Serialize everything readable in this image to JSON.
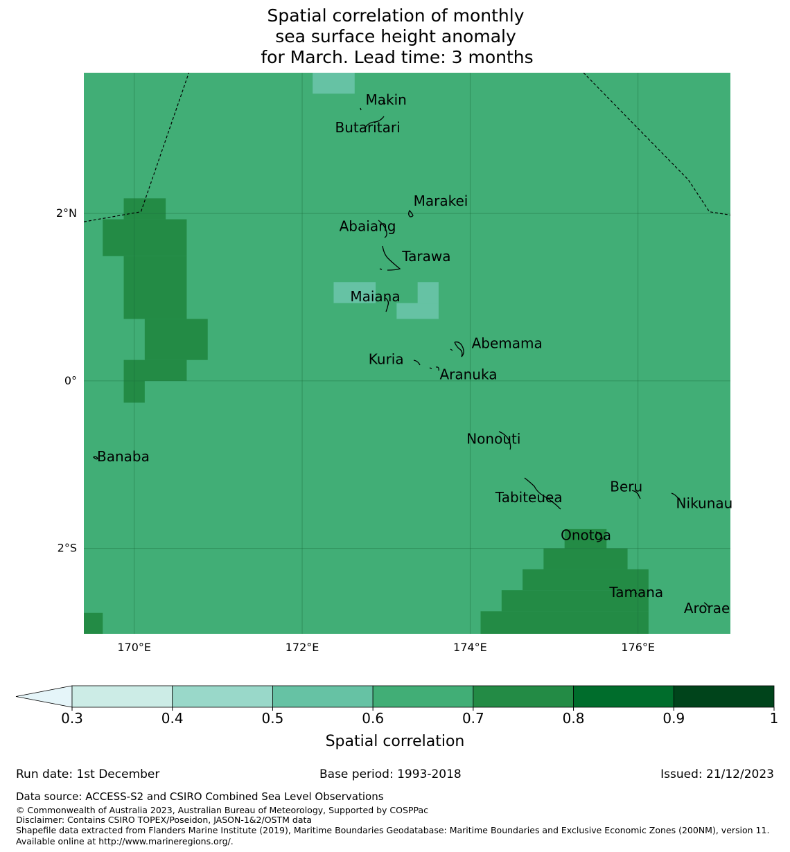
{
  "title": {
    "lines": [
      "Spatial correlation of monthly",
      "sea surface height anomaly",
      "for March. Lead time: 3 months"
    ]
  },
  "map": {
    "lon_range": [
      169.4,
      177.1
    ],
    "lat_range": [
      -3.02,
      3.68
    ],
    "background_value_range": [
      0.6,
      0.7
    ],
    "grid_cell_deg": 0.25,
    "lon_ticks": [
      {
        "value": 170,
        "label": "170°E"
      },
      {
        "value": 172,
        "label": "172°E"
      },
      {
        "value": 174,
        "label": "174°E"
      },
      {
        "value": 176,
        "label": "176°E"
      }
    ],
    "lat_ticks": [
      {
        "value": 2,
        "label": "2°N"
      },
      {
        "value": 0,
        "label": "0°"
      },
      {
        "value": -2,
        "label": "2°S"
      }
    ],
    "cells": [
      {
        "lon": [
          172.125,
          172.625
        ],
        "lat": [
          3.43,
          3.68
        ],
        "range": "0.5-0.6"
      },
      {
        "lon": [
          172.375,
          172.875
        ],
        "lat": [
          0.93,
          1.18
        ],
        "range": "0.5-0.6"
      },
      {
        "lon": [
          173.375,
          173.625
        ],
        "lat": [
          0.93,
          1.18
        ],
        "range": "0.5-0.6"
      },
      {
        "lon": [
          173.125,
          173.625
        ],
        "lat": [
          0.74,
          0.93
        ],
        "range": "0.5-0.6"
      },
      {
        "lon": [
          169.875,
          170.375
        ],
        "lat": [
          1.93,
          2.18
        ],
        "range": "0.7-0.8"
      },
      {
        "lon": [
          169.625,
          170.625
        ],
        "lat": [
          1.49,
          1.93
        ],
        "range": "0.7-0.8"
      },
      {
        "lon": [
          169.875,
          170.625
        ],
        "lat": [
          0.74,
          1.49
        ],
        "range": "0.7-0.8"
      },
      {
        "lon": [
          170.125,
          170.875
        ],
        "lat": [
          0.25,
          0.74
        ],
        "range": "0.7-0.8"
      },
      {
        "lon": [
          169.875,
          170.625
        ],
        "lat": [
          0.0,
          0.25
        ],
        "range": "0.7-0.8"
      },
      {
        "lon": [
          169.875,
          170.125
        ],
        "lat": [
          -0.26,
          0.0
        ],
        "range": "0.7-0.8"
      },
      {
        "lon": [
          169.4,
          169.625
        ],
        "lat": [
          -3.02,
          -2.77
        ],
        "range": "0.7-0.8"
      },
      {
        "lon": [
          175.125,
          175.625
        ],
        "lat": [
          -2.0,
          -1.77
        ],
        "range": "0.7-0.8"
      },
      {
        "lon": [
          174.875,
          175.875
        ],
        "lat": [
          -2.25,
          -2.0
        ],
        "range": "0.7-0.8"
      },
      {
        "lon": [
          174.625,
          176.125
        ],
        "lat": [
          -2.5,
          -2.25
        ],
        "range": "0.7-0.8"
      },
      {
        "lon": [
          174.375,
          176.125
        ],
        "lat": [
          -2.75,
          -2.5
        ],
        "range": "0.7-0.8"
      },
      {
        "lon": [
          174.125,
          176.125
        ],
        "lat": [
          -3.02,
          -2.75
        ],
        "range": "0.7-0.8"
      }
    ],
    "boundaries": [
      [
        [
          169.4,
          1.9
        ],
        [
          170.08,
          2.02
        ],
        [
          170.65,
          3.68
        ]
      ],
      [
        [
          175.35,
          3.68
        ],
        [
          176.6,
          2.4
        ],
        [
          176.85,
          2.02
        ],
        [
          177.1,
          1.98
        ]
      ]
    ],
    "islands": [
      {
        "name": "Makin",
        "lon": 172.9,
        "lat": 3.28,
        "label_lon": 173.0,
        "label_lat": 3.3
      },
      {
        "name": "Butaritari",
        "lon": 172.8,
        "lat": 3.05,
        "label_lon": 172.78,
        "label_lat": 2.97
      },
      {
        "name": "Marakei",
        "lon": 173.28,
        "lat": 2.0,
        "label_lon": 173.65,
        "label_lat": 2.09
      },
      {
        "name": "Abaiang",
        "lon": 173.0,
        "lat": 1.82,
        "label_lon": 172.78,
        "label_lat": 1.79
      },
      {
        "name": "Tarawa",
        "lon": 173.0,
        "lat": 1.45,
        "label_lon": 173.48,
        "label_lat": 1.43
      },
      {
        "name": "Maiana",
        "lon": 173.0,
        "lat": 0.92,
        "label_lon": 172.87,
        "label_lat": 0.95
      },
      {
        "name": "Abemama",
        "lon": 173.85,
        "lat": 0.4,
        "label_lon": 174.44,
        "label_lat": 0.39
      },
      {
        "name": "Kuria",
        "lon": 173.4,
        "lat": 0.23,
        "label_lon": 173.0,
        "label_lat": 0.2
      },
      {
        "name": "Aranuka",
        "lon": 173.6,
        "lat": 0.18,
        "label_lon": 173.98,
        "label_lat": 0.02
      },
      {
        "name": "Nonouti",
        "lon": 174.4,
        "lat": -0.65,
        "label_lon": 174.28,
        "label_lat": -0.75
      },
      {
        "name": "Banaba",
        "lon": 169.53,
        "lat": -0.87,
        "label_lon": 169.87,
        "label_lat": -0.96
      },
      {
        "name": "Tabiteuea",
        "lon": 174.85,
        "lat": -1.35,
        "label_lon": 174.7,
        "label_lat": -1.45
      },
      {
        "name": "Beru",
        "lon": 176.0,
        "lat": -1.33,
        "label_lon": 175.86,
        "label_lat": -1.32
      },
      {
        "name": "Nikunau",
        "lon": 176.45,
        "lat": -1.35,
        "label_lon": 176.79,
        "label_lat": -1.52
      },
      {
        "name": "Onotoa",
        "lon": 175.57,
        "lat": -1.84,
        "label_lon": 175.38,
        "label_lat": -1.9
      },
      {
        "name": "Tamana",
        "lon": 175.98,
        "lat": -2.5,
        "label_lon": 175.98,
        "label_lat": -2.58
      },
      {
        "name": "Arorae",
        "lon": 176.82,
        "lat": -2.64,
        "label_lon": 176.82,
        "label_lat": -2.77
      }
    ]
  },
  "colorbar": {
    "label": "Spatial correlation",
    "extend": "min",
    "extend_color": "#e5f5f9",
    "boundaries": [
      0.3,
      0.4,
      0.5,
      0.6,
      0.7,
      0.8,
      0.9,
      1.0
    ],
    "tick_labels": [
      "0.3",
      "0.4",
      "0.5",
      "0.6",
      "0.7",
      "0.8",
      "0.9",
      "1"
    ],
    "colors": [
      "#ccece6",
      "#99d8c9",
      "#66c2a4",
      "#41ae76",
      "#238b45",
      "#006d2c",
      "#00441b"
    ]
  },
  "footer": {
    "run_date": "Run date: 1st December",
    "base_period": "Base period: 1993-2018",
    "issued": "Issued: 21/12/2023",
    "data_source": "Data source: ACCESS-S2 and CSIRO Combined Sea Level Observations",
    "copyright": "© Commonwealth of Australia 2023, Australian Bureau of Meteorology, Supported by COSPPac",
    "disclaimer": "Disclaimer: Contains CSIRO TOPEX/Poseidon, JASON-1&2/OSTM data",
    "shapefile": "Shapefile data extracted from Flanders Marine Institute (2019), Maritime Boundaries Geodatabase: Maritime Boundaries and Exclusive Economic Zones (200NM), version 11. Available online at http://www.marineregions.org/."
  }
}
